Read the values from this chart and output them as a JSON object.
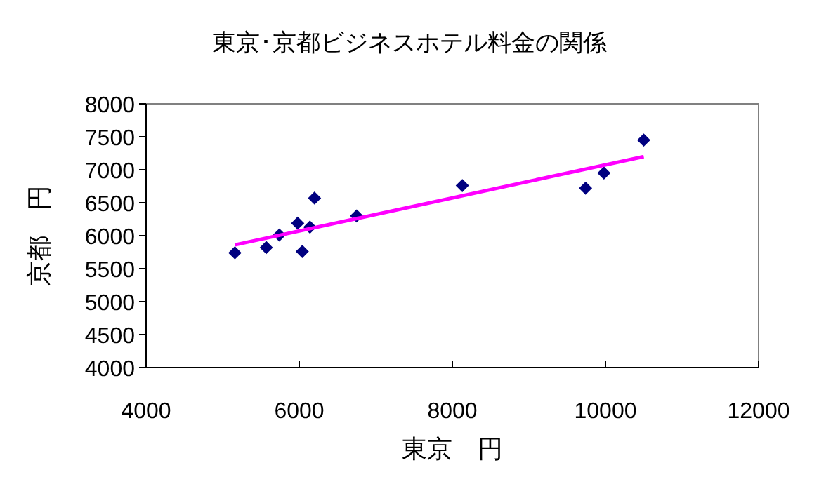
{
  "chart_data": {
    "type": "scatter",
    "title": "東京･京都ビジネスホテル料金の関係",
    "xlabel": "東京　円",
    "ylabel": "京都　円",
    "xlim": [
      4000,
      12000
    ],
    "xticks": [
      4000,
      6000,
      8000,
      10000,
      12000
    ],
    "ylim": [
      4000,
      8000
    ],
    "yticks": [
      4000,
      4500,
      5000,
      5500,
      6000,
      6500,
      7000,
      7500,
      8000
    ],
    "grid": false,
    "series": [
      {
        "type": "scatter",
        "color": "#000080",
        "marker": "diamond",
        "x": [
          5160,
          5570,
          5740,
          5980,
          6040,
          6140,
          6200,
          6750,
          8130,
          9740,
          9980,
          10500
        ],
        "values": [
          5740,
          5820,
          6010,
          6190,
          5760,
          6130,
          6570,
          6300,
          6760,
          6720,
          6950,
          7450
        ]
      },
      {
        "type": "line",
        "color": "#ff00ff",
        "marker": "none",
        "x": [
          5160,
          10500
        ],
        "values": [
          5860,
          7200
        ]
      }
    ]
  }
}
